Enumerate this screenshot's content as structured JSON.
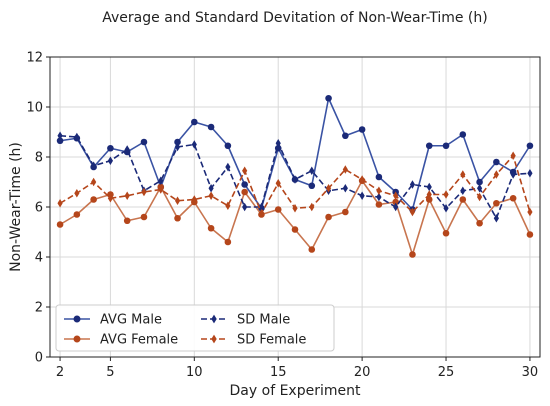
{
  "chart_data": {
    "type": "line",
    "title": "Average and Standard Devitation of Non-Wear-Time (h)",
    "xlabel": "Day of Experiment",
    "ylabel": "Non-Wear-Time (h)",
    "xlim": [
      1.4,
      30.6
    ],
    "ylim": [
      0,
      12
    ],
    "xticks": [
      2,
      5,
      10,
      15,
      20,
      25,
      30
    ],
    "yticks": [
      0,
      2,
      4,
      6,
      8,
      10,
      12
    ],
    "grid": true,
    "legend_position": "lower-left",
    "x": [
      2,
      3,
      4,
      5,
      6,
      7,
      8,
      9,
      10,
      11,
      12,
      13,
      14,
      15,
      16,
      17,
      18,
      19,
      20,
      21,
      22,
      23,
      24,
      25,
      26,
      27,
      28,
      29,
      30
    ],
    "series": [
      {
        "name": "AVG Male",
        "color": "#3a53a4",
        "marker_color": "#1b2a78",
        "style": "solid",
        "marker": "circle",
        "values": [
          8.65,
          8.75,
          7.6,
          8.35,
          8.2,
          8.6,
          6.8,
          8.6,
          9.4,
          9.2,
          8.45,
          6.9,
          5.95,
          8.35,
          7.1,
          6.85,
          10.35,
          8.85,
          9.1,
          7.2,
          6.6,
          5.9,
          8.45,
          8.45,
          8.9,
          7.0,
          7.8,
          7.4,
          8.45
        ]
      },
      {
        "name": "AVG Female",
        "color": "#c8754f",
        "marker_color": "#b5461b",
        "style": "solid",
        "marker": "circle",
        "values": [
          5.3,
          5.7,
          6.3,
          6.5,
          5.45,
          5.6,
          6.8,
          5.55,
          6.2,
          5.15,
          4.6,
          6.6,
          5.7,
          5.9,
          5.1,
          4.3,
          5.6,
          5.8,
          7.05,
          6.1,
          6.2,
          4.1,
          6.3,
          4.95,
          6.3,
          5.35,
          6.15,
          6.35,
          4.9
        ]
      },
      {
        "name": "SD Male",
        "color": "#1b2a78",
        "marker_color": "#1b2a78",
        "style": "dashed",
        "marker": "diamond",
        "values": [
          8.85,
          8.8,
          7.65,
          7.85,
          8.3,
          6.65,
          7.05,
          8.4,
          8.5,
          6.75,
          7.6,
          6.0,
          6.0,
          8.55,
          7.1,
          7.45,
          6.65,
          6.75,
          6.45,
          6.4,
          6.0,
          6.9,
          6.8,
          5.95,
          6.65,
          6.75,
          5.55,
          7.3,
          7.35
        ]
      },
      {
        "name": "SD Female",
        "color": "#b5461b",
        "marker_color": "#b5461b",
        "style": "dashed",
        "marker": "diamond",
        "values": [
          6.15,
          6.55,
          7.0,
          6.35,
          6.45,
          6.6,
          6.7,
          6.25,
          6.3,
          6.45,
          6.05,
          7.45,
          5.75,
          6.95,
          5.95,
          6.0,
          6.75,
          7.5,
          7.1,
          6.65,
          6.45,
          5.8,
          6.5,
          6.5,
          7.3,
          6.4,
          7.3,
          8.05,
          5.8
        ]
      }
    ]
  }
}
